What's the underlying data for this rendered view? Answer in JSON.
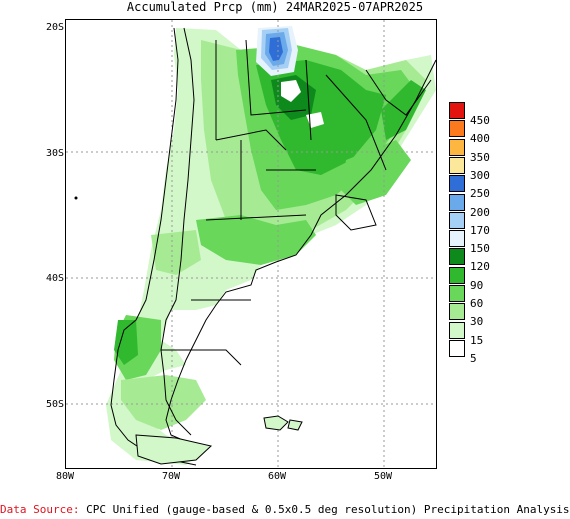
{
  "title": "Accumulated Prcp (mm) 24MAR2025-07APR2025",
  "lat_labels": [
    "20S",
    "30S",
    "40S",
    "50S"
  ],
  "lon_labels": [
    "80W",
    "70W",
    "60W",
    "50W"
  ],
  "legend": {
    "labels": [
      "5",
      "15",
      "30",
      "60",
      "90",
      "120",
      "150",
      "170",
      "200",
      "250",
      "300",
      "350",
      "400",
      "450"
    ],
    "colors": [
      "#ffffff",
      "#d2f7c8",
      "#a6eb94",
      "#68d75a",
      "#30b82f",
      "#0e8a1d",
      "#e6f2fc",
      "#a6cff5",
      "#6aa9ea",
      "#2f6ed6",
      "#fbe89a",
      "#fdb740",
      "#fc7a1d",
      "#e3140f"
    ]
  },
  "footer": {
    "source_label": "Data Source:",
    "source_text": "CPC Unified (gauge-based & 0.5x0.5 deg resolution) Precipitation Analysis"
  }
}
